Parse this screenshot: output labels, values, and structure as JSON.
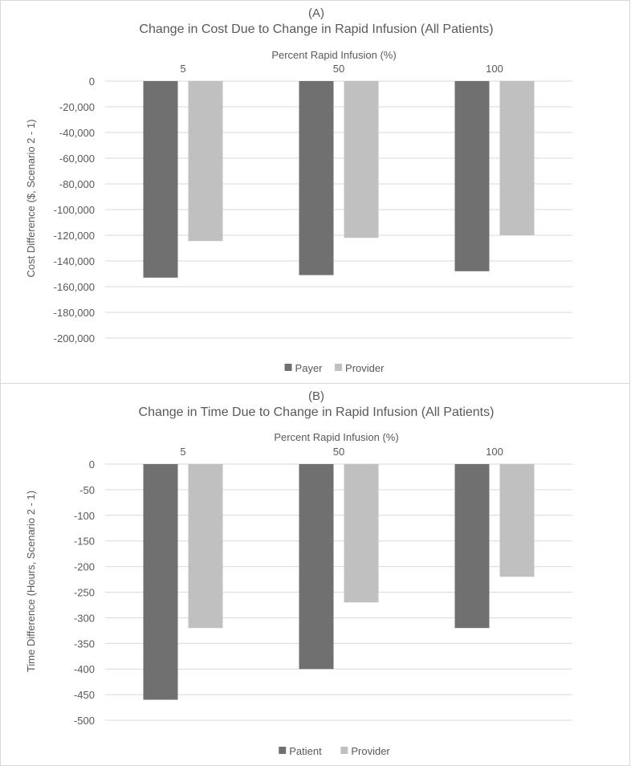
{
  "chart_data": [
    {
      "type": "bar",
      "panel_label": "(A)",
      "title": "Change in Cost Due to Change in Rapid Infusion (All Patients)",
      "xlabel": "Percent Rapid Infusion (%)",
      "ylabel": "Cost Difference ($, Scenario 2 - 1)",
      "categories": [
        "5",
        "50",
        "100"
      ],
      "ylim": [
        -200000,
        0
      ],
      "yticks": [
        "0",
        "-20,000",
        "-40,000",
        "-60,000",
        "-80,000",
        "-100,000",
        "-120,000",
        "-140,000",
        "-160,000",
        "-180,000",
        "-200,000"
      ],
      "series": [
        {
          "name": "Payer",
          "color": "#707070",
          "values": [
            -153000,
            -151000,
            -148000
          ]
        },
        {
          "name": "Provider",
          "color": "#c0c0c0",
          "values": [
            -124500,
            -122000,
            -120000
          ]
        }
      ],
      "grid": true,
      "x_axis_position": "top",
      "legend": "bottom"
    },
    {
      "type": "bar",
      "panel_label": "(B)",
      "title": "Change in Time Due to Change in Rapid Infusion (All Patients)",
      "xlabel": "Percent Rapid Infusion (%)",
      "ylabel": "Time Difference (Hours, Scenario 2 - 1)",
      "categories": [
        "5",
        "50",
        "100"
      ],
      "ylim": [
        -500,
        0
      ],
      "yticks": [
        "0",
        "-50",
        "-100",
        "-150",
        "-200",
        "-250",
        "-300",
        "-350",
        "-400",
        "-450",
        "-500"
      ],
      "series": [
        {
          "name": "Patient",
          "color": "#707070",
          "values": [
            -460,
            -400,
            -320
          ]
        },
        {
          "name": "Provider",
          "color": "#c0c0c0",
          "values": [
            -320,
            -270,
            -220
          ]
        }
      ],
      "grid": true,
      "x_axis_position": "top",
      "legend": "bottom"
    }
  ]
}
